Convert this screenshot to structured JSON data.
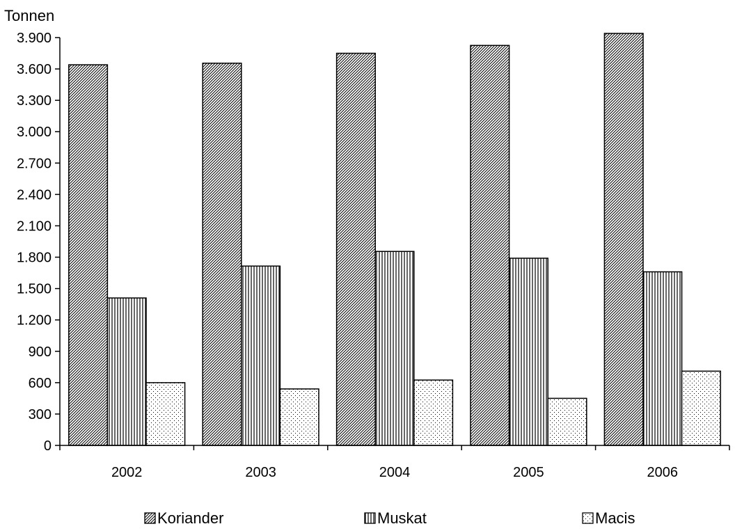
{
  "chart_data": {
    "type": "bar",
    "ylabel": "Tonnen",
    "categories": [
      "2002",
      "2003",
      "2004",
      "2005",
      "2006"
    ],
    "series": [
      {
        "name": "Koriander",
        "values": [
          3640,
          3655,
          3750,
          3825,
          3940
        ]
      },
      {
        "name": "Muskat",
        "values": [
          1410,
          1715,
          1855,
          1790,
          1660
        ]
      },
      {
        "name": "Macis",
        "values": [
          600,
          540,
          625,
          450,
          710
        ]
      }
    ],
    "ylim": [
      0,
      3900
    ],
    "yticks": [
      0,
      300,
      600,
      900,
      1200,
      1500,
      1800,
      2100,
      2400,
      2700,
      3000,
      3300,
      3600,
      3900
    ],
    "ytick_labels": [
      "0",
      "300",
      "600",
      "900",
      "1.200",
      "1.500",
      "1.800",
      "2.100",
      "2.400",
      "2.700",
      "3.000",
      "3.300",
      "3.600",
      "3.900"
    ],
    "grid": false,
    "legend_position": "bottom",
    "pattern_names": [
      "diagonal-hatch",
      "vertical-stripes",
      "dots"
    ]
  }
}
